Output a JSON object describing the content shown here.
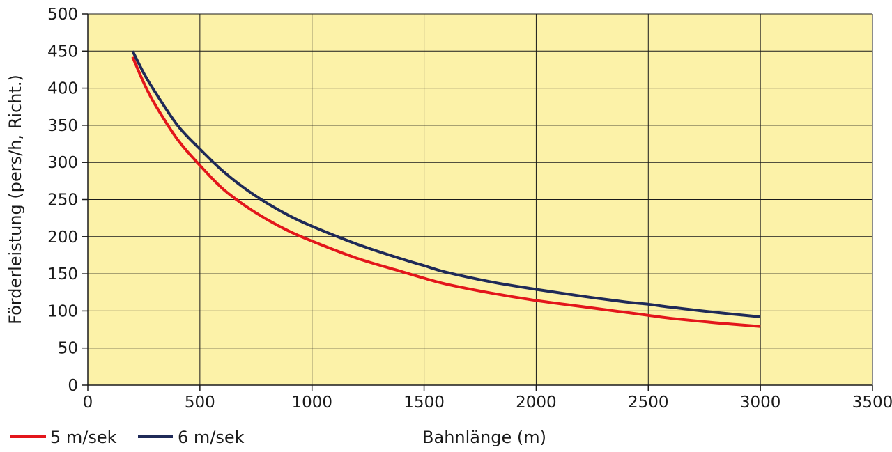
{
  "chart_data": {
    "type": "line",
    "title": "",
    "xlabel": "Bahnlänge (m)",
    "ylabel": "Förderleistung (pers/h, Richt.)",
    "xlim": [
      0,
      3500
    ],
    "ylim": [
      0,
      500
    ],
    "x_ticks": [
      0,
      500,
      1000,
      1500,
      2000,
      2500,
      3000,
      3500
    ],
    "y_ticks": [
      0,
      50,
      100,
      150,
      200,
      250,
      300,
      350,
      400,
      450,
      500
    ],
    "grid": true,
    "legend_position": "bottom-left",
    "colors": {
      "plot_background": "#FCF2A8",
      "grid": "#1a1a1a",
      "axis": "#1a1a1a"
    },
    "series": [
      {
        "name": "5 m/sek",
        "color": "#E3161B",
        "x": [
          200,
          250,
          300,
          400,
          500,
          600,
          700,
          800,
          900,
          1000,
          1200,
          1400,
          1500,
          1600,
          1800,
          2000,
          2200,
          2400,
          2500,
          2600,
          2800,
          3000
        ],
        "y": [
          442,
          407,
          378,
          331,
          296,
          265,
          242,
          223,
          207,
          194,
          171,
          153,
          144,
          136,
          124,
          114,
          106,
          98,
          94,
          90,
          84,
          79
        ]
      },
      {
        "name": "6 m/sek",
        "color": "#1F2A58",
        "x": [
          200,
          250,
          300,
          400,
          500,
          600,
          700,
          800,
          900,
          1000,
          1200,
          1400,
          1500,
          1600,
          1800,
          2000,
          2200,
          2400,
          2500,
          2600,
          2800,
          3000
        ],
        "y": [
          450,
          420,
          395,
          350,
          318,
          289,
          265,
          245,
          228,
          214,
          190,
          170,
          161,
          152,
          139,
          129,
          120,
          112,
          109,
          105,
          98,
          92
        ]
      }
    ]
  }
}
